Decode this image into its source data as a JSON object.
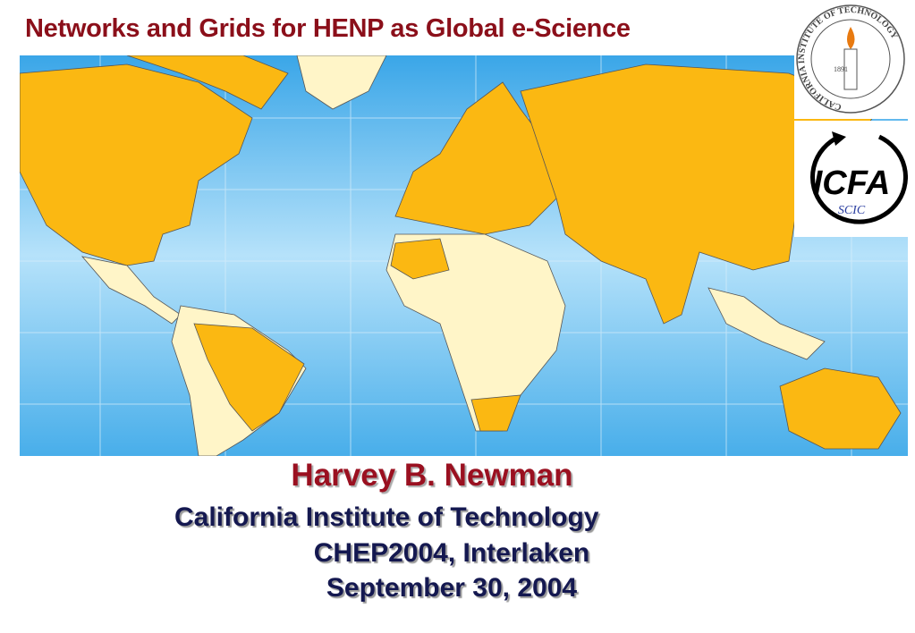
{
  "header": {
    "title": "Networks and Grids for HENP as Global e-Science"
  },
  "logos": {
    "caltech": {
      "ring_text": "CALIFORNIA INSTITUTE OF TECHNOLOGY",
      "year": "1891"
    },
    "icfa": {
      "name": "ICFA",
      "sub": "SCIC"
    }
  },
  "author": {
    "name": "Harvey B. Newman",
    "affiliation": "California Institute of Technology",
    "event": "CHEP2004, Interlaken",
    "date": "September 30, 2004"
  }
}
